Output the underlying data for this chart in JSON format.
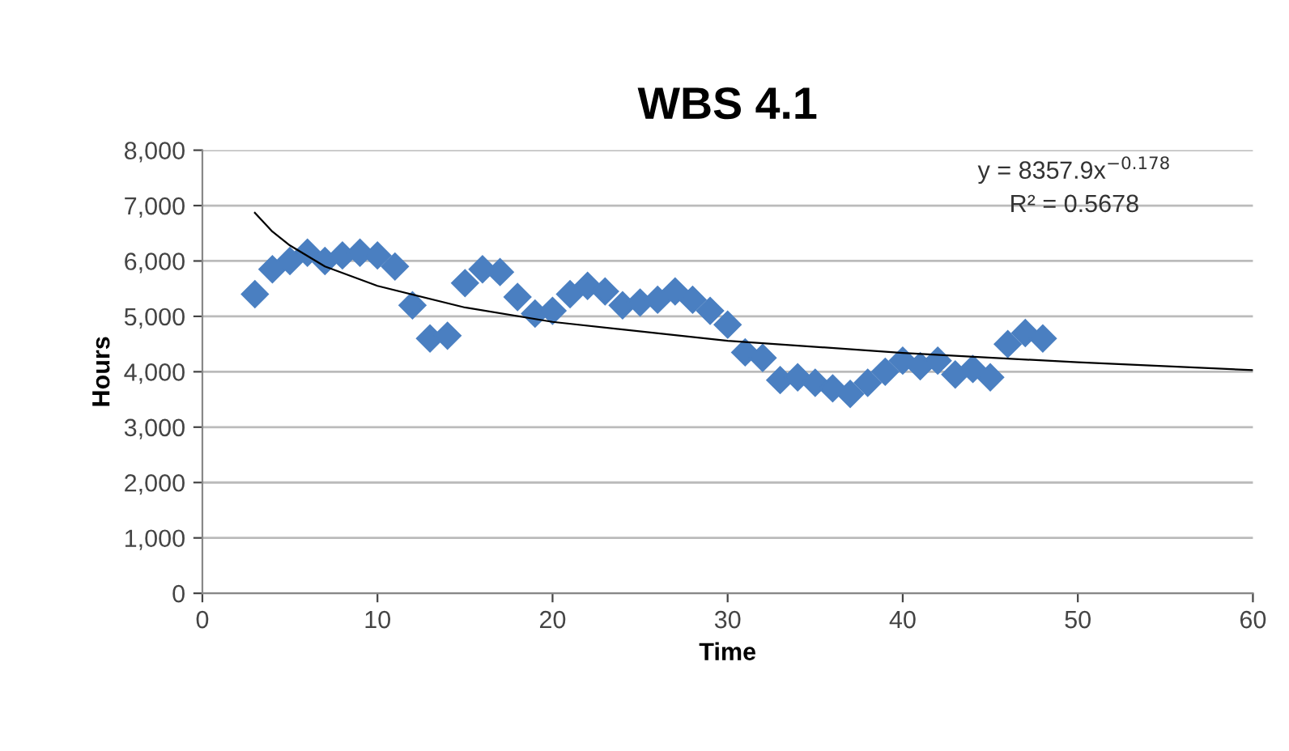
{
  "chart_data": {
    "type": "scatter",
    "title": "WBS 4.1",
    "xlabel": "Time",
    "ylabel": "Hours",
    "xlim": [
      0,
      60
    ],
    "xticks": [
      0,
      10,
      20,
      30,
      40,
      50,
      60
    ],
    "ylim": [
      0,
      8000
    ],
    "yticks": [
      {
        "value": 0,
        "label": "0"
      },
      {
        "value": 1000,
        "label": "1,000"
      },
      {
        "value": 2000,
        "label": "2,000"
      },
      {
        "value": 3000,
        "label": "3,000"
      },
      {
        "value": 4000,
        "label": "4,000"
      },
      {
        "value": 5000,
        "label": "5,000"
      },
      {
        "value": 6000,
        "label": "6,000"
      },
      {
        "value": 7000,
        "label": "7,000"
      },
      {
        "value": 8000,
        "label": "8,000"
      }
    ],
    "grid": "y",
    "marker": "diamond",
    "legend": false,
    "annotations": [
      "y = 8357.9x$^{−0.178}$",
      "R² = 0.5678"
    ],
    "series": [
      {
        "color": "#4a7fc1",
        "x": [
          3,
          4,
          5,
          6,
          7,
          8,
          9,
          10,
          11,
          12,
          13,
          14,
          15,
          16,
          17,
          18,
          19,
          20,
          21,
          22,
          23,
          24,
          25,
          26,
          27,
          28,
          29,
          30,
          31,
          32,
          33,
          34,
          35,
          36,
          37,
          38,
          39,
          40,
          41,
          42,
          43,
          44,
          45,
          46,
          47,
          48
        ],
        "values": [
          5400,
          5850,
          6000,
          6150,
          6000,
          6100,
          6150,
          6100,
          5900,
          5200,
          4600,
          4650,
          5600,
          5850,
          5800,
          5350,
          5050,
          5100,
          5400,
          5550,
          5450,
          5200,
          5250,
          5300,
          5450,
          5300,
          5100,
          4850,
          4350,
          4250,
          3850,
          3900,
          3800,
          3700,
          3600,
          3800,
          4000,
          4200,
          4100,
          4200,
          3950,
          4050,
          3900,
          4500,
          4700,
          4600
        ]
      },
      {
        "type": "line",
        "color": "#000000",
        "marker": "none",
        "x": [
          3,
          4,
          5,
          7,
          10,
          15,
          20,
          30,
          40,
          50,
          60
        ],
        "values": [
          6870,
          6530,
          6280,
          5900,
          5550,
          5160,
          4900,
          4560,
          4340,
          4170,
          4030
        ]
      }
    ]
  }
}
